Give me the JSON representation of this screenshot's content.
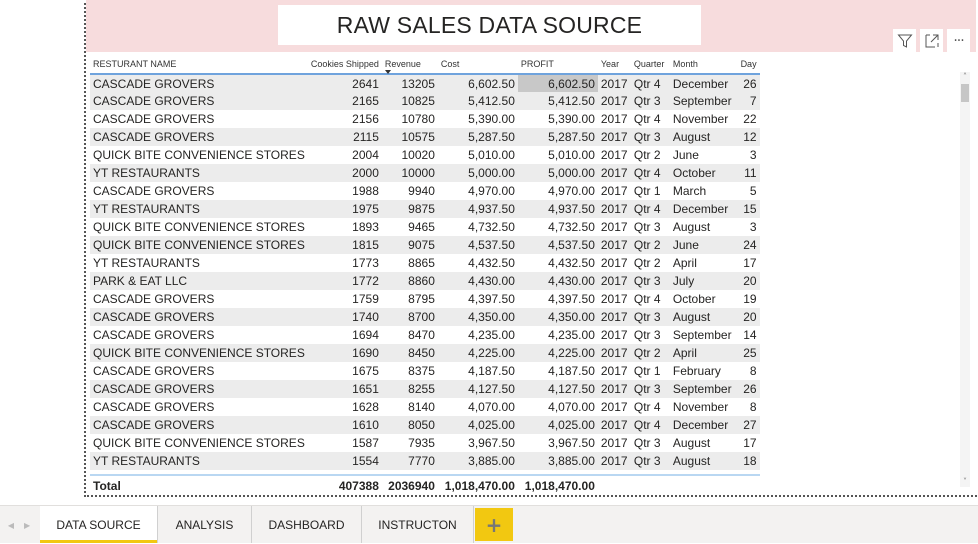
{
  "report": {
    "title": "RAW SALES DATA SOURCE"
  },
  "visual_header": {
    "icons": [
      "filter-icon",
      "focus-mode-icon",
      "more-options-icon"
    ],
    "more_label": "···"
  },
  "table": {
    "columns": [
      {
        "key": "name",
        "label": "RESTURANT NAME",
        "align": "left"
      },
      {
        "key": "cookies",
        "label": "Cookies Shipped",
        "align": "right"
      },
      {
        "key": "revenue",
        "label": "Revenue",
        "align": "left",
        "sorted": "desc"
      },
      {
        "key": "cost",
        "label": "Cost",
        "align": "left"
      },
      {
        "key": "profit",
        "label": "PROFIT",
        "align": "left"
      },
      {
        "key": "year",
        "label": "Year",
        "align": "left"
      },
      {
        "key": "quarter",
        "label": "Quarter",
        "align": "left"
      },
      {
        "key": "month",
        "label": "Month",
        "align": "left"
      },
      {
        "key": "day",
        "label": "Day",
        "align": "left"
      }
    ],
    "rows": [
      [
        "CASCADE GROVERS",
        "2641",
        "13205",
        "6,602.50",
        "6,602.50",
        "2017",
        "Qtr 4",
        "December",
        "26"
      ],
      [
        "CASCADE GROVERS",
        "2165",
        "10825",
        "5,412.50",
        "5,412.50",
        "2017",
        "Qtr 3",
        "September",
        "7"
      ],
      [
        "CASCADE GROVERS",
        "2156",
        "10780",
        "5,390.00",
        "5,390.00",
        "2017",
        "Qtr 4",
        "November",
        "22"
      ],
      [
        "CASCADE GROVERS",
        "2115",
        "10575",
        "5,287.50",
        "5,287.50",
        "2017",
        "Qtr 3",
        "August",
        "12"
      ],
      [
        "QUICK BITE CONVENIENCE STORES",
        "2004",
        "10020",
        "5,010.00",
        "5,010.00",
        "2017",
        "Qtr 2",
        "June",
        "3"
      ],
      [
        "YT RESTAURANTS",
        "2000",
        "10000",
        "5,000.00",
        "5,000.00",
        "2017",
        "Qtr 4",
        "October",
        "11"
      ],
      [
        "CASCADE GROVERS",
        "1988",
        "9940",
        "4,970.00",
        "4,970.00",
        "2017",
        "Qtr 1",
        "March",
        "5"
      ],
      [
        "YT RESTAURANTS",
        "1975",
        "9875",
        "4,937.50",
        "4,937.50",
        "2017",
        "Qtr 4",
        "December",
        "15"
      ],
      [
        "QUICK BITE CONVENIENCE STORES",
        "1893",
        "9465",
        "4,732.50",
        "4,732.50",
        "2017",
        "Qtr 3",
        "August",
        "3"
      ],
      [
        "QUICK BITE CONVENIENCE STORES",
        "1815",
        "9075",
        "4,537.50",
        "4,537.50",
        "2017",
        "Qtr 2",
        "June",
        "24"
      ],
      [
        "YT RESTAURANTS",
        "1773",
        "8865",
        "4,432.50",
        "4,432.50",
        "2017",
        "Qtr 2",
        "April",
        "17"
      ],
      [
        "PARK & EAT LLC",
        "1772",
        "8860",
        "4,430.00",
        "4,430.00",
        "2017",
        "Qtr 3",
        "July",
        "20"
      ],
      [
        "CASCADE GROVERS",
        "1759",
        "8795",
        "4,397.50",
        "4,397.50",
        "2017",
        "Qtr 4",
        "October",
        "19"
      ],
      [
        "CASCADE GROVERS",
        "1740",
        "8700",
        "4,350.00",
        "4,350.00",
        "2017",
        "Qtr 3",
        "August",
        "20"
      ],
      [
        "CASCADE GROVERS",
        "1694",
        "8470",
        "4,235.00",
        "4,235.00",
        "2017",
        "Qtr 3",
        "September",
        "14"
      ],
      [
        "QUICK BITE CONVENIENCE STORES",
        "1690",
        "8450",
        "4,225.00",
        "4,225.00",
        "2017",
        "Qtr 2",
        "April",
        "25"
      ],
      [
        "CASCADE GROVERS",
        "1675",
        "8375",
        "4,187.50",
        "4,187.50",
        "2017",
        "Qtr 1",
        "February",
        "8"
      ],
      [
        "CASCADE GROVERS",
        "1651",
        "8255",
        "4,127.50",
        "4,127.50",
        "2017",
        "Qtr 3",
        "September",
        "26"
      ],
      [
        "CASCADE GROVERS",
        "1628",
        "8140",
        "4,070.00",
        "4,070.00",
        "2017",
        "Qtr 4",
        "November",
        "8"
      ],
      [
        "CASCADE GROVERS",
        "1610",
        "8050",
        "4,025.00",
        "4,025.00",
        "2017",
        "Qtr 4",
        "December",
        "27"
      ],
      [
        "QUICK BITE CONVENIENCE STORES",
        "1587",
        "7935",
        "3,967.50",
        "3,967.50",
        "2017",
        "Qtr 3",
        "August",
        "17"
      ],
      [
        "YT RESTAURANTS",
        "1554",
        "7770",
        "3,885.00",
        "3,885.00",
        "2017",
        "Qtr 3",
        "August",
        "18"
      ]
    ],
    "total": {
      "label": "Total",
      "cookies": "407388",
      "revenue": "2036940",
      "cost": "1,018,470.00",
      "profit": "1,018,470.00"
    }
  },
  "scrollbar": {
    "up": "˄",
    "down": "˅"
  },
  "tabs": {
    "nav_prev": "◀",
    "nav_next": "▶",
    "items": [
      {
        "label": "DATA SOURCE",
        "active": true
      },
      {
        "label": "ANALYSIS",
        "active": false
      },
      {
        "label": "DASHBOARD",
        "active": false
      },
      {
        "label": "INSTRUCTON",
        "active": false
      }
    ],
    "add_label": "+"
  },
  "colors": {
    "header_band": "#f7dcdd",
    "accent_yellow": "#f2c811",
    "header_underline": "#6fa3dd",
    "row_alt": "#ececec",
    "selected_cell": "#c8c8c8"
  }
}
